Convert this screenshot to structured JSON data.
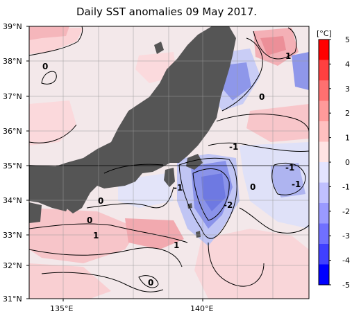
{
  "title": "Daily SST anomalies 09 May 2017.",
  "map": {
    "lat_ticks": [
      "39°N",
      "38°N",
      "37°N",
      "36°N",
      "35°N",
      "34°N",
      "33°N",
      "32°N",
      "31°N"
    ],
    "lon_ticks": [
      "135°E",
      "140°E"
    ],
    "contour_labels": [
      "0",
      "1",
      "0",
      "-1",
      "-1",
      "-1",
      "-1",
      "0",
      "-2",
      "0",
      "0",
      "1",
      "1",
      "0"
    ]
  },
  "colorbar": {
    "unit": "[°C]",
    "ticks": [
      "5",
      "4",
      "3",
      "2",
      "1",
      "0",
      "-1",
      "-2",
      "-3",
      "-4",
      "-5"
    ],
    "colors": [
      "#ff0000",
      "#ff4040",
      "#ff7070",
      "#ff9a9a",
      "#ffc0c0",
      "#ffe4e4",
      "#e4e4ff",
      "#c0c0ff",
      "#9a9aff",
      "#7070ff",
      "#4040ff",
      "#0000ff"
    ]
  }
}
